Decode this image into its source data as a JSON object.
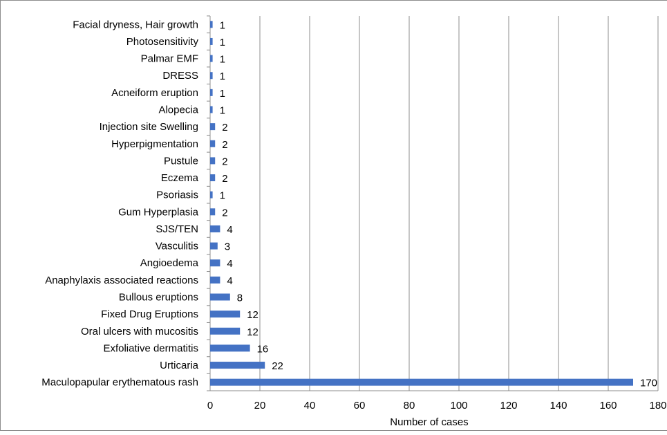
{
  "chart_data": {
    "type": "bar",
    "orientation": "horizontal",
    "categories": [
      "Facial dryness, Hair growth",
      "Photosensitivity",
      "Palmar EMF",
      "DRESS",
      "Acneiform eruption",
      "Alopecia",
      "Injection site Swelling",
      "Hyperpigmentation",
      "Pustule",
      "Eczema",
      "Psoriasis",
      "Gum Hyperplasia",
      "SJS/TEN",
      "Vasculitis",
      "Angioedema",
      "Anaphylaxis associated reactions",
      "Bullous eruptions",
      "Fixed Drug Eruptions",
      "Oral ulcers with mucositis",
      "Exfoliative dermatitis",
      "Urticaria",
      "Maculopapular erythematous rash"
    ],
    "values": [
      1,
      1,
      1,
      1,
      1,
      1,
      2,
      2,
      2,
      2,
      1,
      2,
      4,
      3,
      4,
      4,
      8,
      12,
      12,
      16,
      22,
      170
    ],
    "xlabel": "Number of cases",
    "ylabel": "",
    "xlim": [
      0,
      180
    ],
    "xticks": [
      "0",
      "20",
      "40",
      "60",
      "80",
      "100",
      "120",
      "140",
      "160",
      "180"
    ],
    "grid": "vertical major gridlines",
    "legend": "none",
    "data_labels": true,
    "bar_color": "#4472c4",
    "grid_color": "#8c8c8c"
  }
}
